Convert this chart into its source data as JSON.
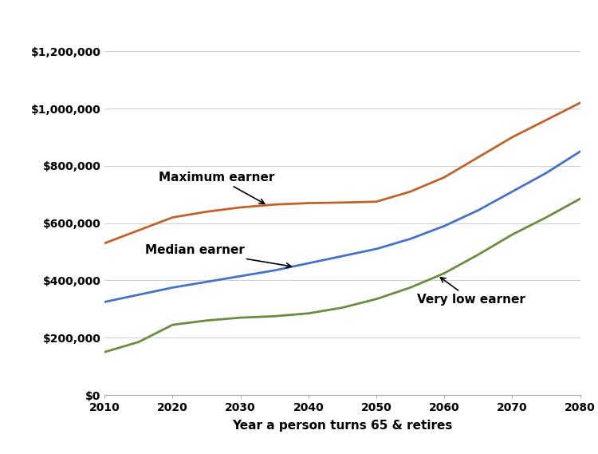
{
  "years": [
    2010,
    2015,
    2020,
    2025,
    2030,
    2035,
    2040,
    2045,
    2050,
    2055,
    2060,
    2065,
    2070,
    2075,
    2080
  ],
  "maximum_earner": [
    530000,
    575000,
    620000,
    640000,
    655000,
    665000,
    670000,
    672000,
    675000,
    710000,
    760000,
    830000,
    900000,
    960000,
    1020000
  ],
  "median_earner": [
    325000,
    350000,
    375000,
    395000,
    415000,
    435000,
    460000,
    485000,
    510000,
    545000,
    590000,
    645000,
    710000,
    775000,
    850000
  ],
  "very_low_earner": [
    150000,
    185000,
    245000,
    260000,
    270000,
    275000,
    285000,
    305000,
    335000,
    375000,
    425000,
    490000,
    560000,
    620000,
    685000
  ],
  "line_colors": {
    "maximum_earner": "#C0622C",
    "median_earner": "#4472C4",
    "very_low_earner": "#6B8C3E"
  },
  "ylim": [
    0,
    1300000
  ],
  "xlim": [
    2010,
    2080
  ],
  "yticks": [
    0,
    200000,
    400000,
    600000,
    800000,
    1000000,
    1200000
  ],
  "xticks": [
    2010,
    2020,
    2030,
    2040,
    2050,
    2060,
    2070,
    2080
  ],
  "xlabel": "Year a person turns 65 & retires",
  "background_color": "#ffffff",
  "grid_color": "#d0d0d0",
  "line_width": 2.0
}
